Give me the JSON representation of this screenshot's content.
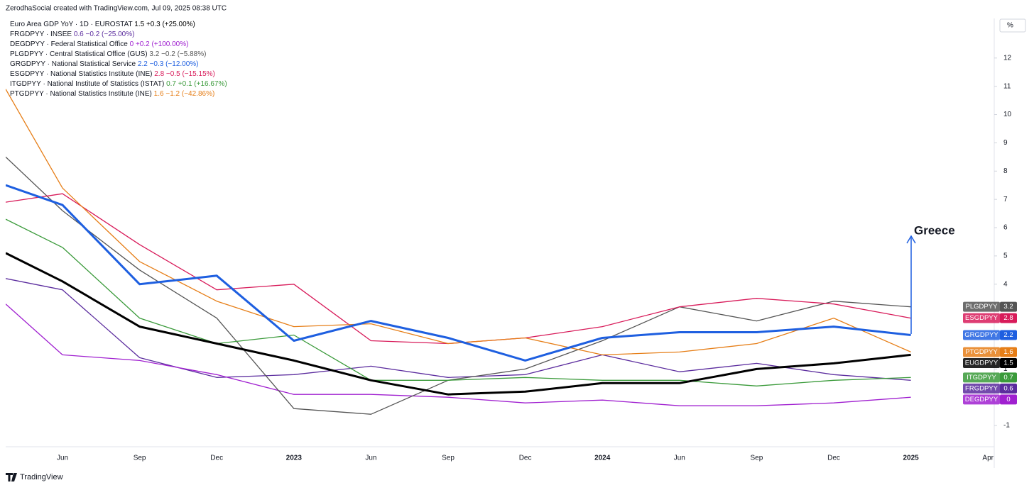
{
  "chart_data": {
    "type": "line",
    "attribution": "ZerodhaSocial created with TradingView.com, Jul 09, 2025 08:38 UTC",
    "brand": "TradingView",
    "y_unit": "%",
    "categories": [
      null,
      "Jun",
      "Sep",
      "Dec",
      "2023",
      "Jun",
      "Sep",
      "Dec",
      "2024",
      "Jun",
      "Sep",
      "Dec",
      "2025",
      "Apr"
    ],
    "ylim": [
      -1.75,
      13.4
    ],
    "yticks": [
      -1,
      1,
      4,
      5,
      6,
      7,
      8,
      9,
      10,
      11,
      12
    ],
    "annotation": {
      "text": "Greece",
      "color": "#1e5fe0"
    },
    "series": [
      {
        "name": "EUGDPYY",
        "description": "Euro Area GDP YoY · 1D · EUROSTAT",
        "change": "+0.3 (+25.00%)",
        "color": "#000000",
        "width": 3,
        "values": [
          5.1,
          4.1,
          2.5,
          1.9,
          1.3,
          0.6,
          0.1,
          0.2,
          0.5,
          0.5,
          1.0,
          1.2,
          1.5,
          null
        ]
      },
      {
        "name": "FRGDPYY",
        "description": "FRGDPYY · INSEE",
        "change": "−0.2 (−25.00%)",
        "color": "#5b2c9e",
        "width": 1.3,
        "values": [
          4.2,
          3.8,
          1.4,
          0.7,
          0.8,
          1.1,
          0.7,
          0.8,
          1.5,
          0.9,
          1.2,
          0.8,
          0.6,
          null
        ]
      },
      {
        "name": "DEGDPYY",
        "description": "DEGDPYY · Federal Statistical Office",
        "change": "+0.2 (+100.00%)",
        "color": "#a020d0",
        "width": 1.3,
        "values": [
          3.3,
          1.5,
          1.3,
          0.8,
          0.1,
          0.1,
          0.0,
          -0.2,
          -0.1,
          -0.3,
          -0.3,
          -0.2,
          0,
          null
        ]
      },
      {
        "name": "PLGDPYY",
        "description": "PLGDPYY · Central Statistical Office (GUS)",
        "change": "−0.2 (−5.88%)",
        "color": "#555555",
        "width": 1.3,
        "values": [
          8.5,
          6.6,
          4.5,
          2.8,
          -0.4,
          -0.6,
          0.6,
          1.0,
          2.0,
          3.2,
          2.7,
          3.4,
          3.2,
          null
        ]
      },
      {
        "name": "GRGDPYY",
        "description": "GRGDPYY · National Statistical Service",
        "change": "−0.3 (−12.00%)",
        "color": "#1e5fe0",
        "width": 3,
        "values": [
          7.5,
          6.8,
          4.0,
          4.3,
          2.0,
          2.7,
          2.1,
          1.3,
          2.1,
          2.3,
          2.3,
          2.5,
          2.2,
          null
        ]
      },
      {
        "name": "ESGDPYY",
        "description": "ESGDPYY · National Statistics Institute (INE)",
        "change": "−0.5 (−15.15%)",
        "color": "#d81b5a",
        "width": 1.3,
        "values": [
          6.9,
          7.2,
          5.4,
          3.8,
          4.0,
          2.0,
          1.9,
          2.1,
          2.5,
          3.2,
          3.5,
          3.3,
          2.8,
          null
        ]
      },
      {
        "name": "ITGDPYY",
        "description": "ITGDPYY · National Institute of Statistics (ISTAT)",
        "change": "+0.1 (+16.67%)",
        "color": "#3a9a3a",
        "width": 1.3,
        "values": [
          6.3,
          5.3,
          2.8,
          1.9,
          2.2,
          0.6,
          0.6,
          0.7,
          0.6,
          0.6,
          0.4,
          0.6,
          0.7,
          null
        ]
      },
      {
        "name": "PTGDPYY",
        "description": "PTGDPYY · National Statistics Institute (INE)",
        "change": "−1.2 (−42.86%)",
        "color": "#e67e17",
        "width": 1.3,
        "values": [
          10.9,
          7.4,
          4.8,
          3.4,
          2.5,
          2.6,
          1.9,
          2.1,
          1.5,
          1.6,
          1.9,
          2.8,
          1.6,
          null
        ]
      }
    ]
  }
}
